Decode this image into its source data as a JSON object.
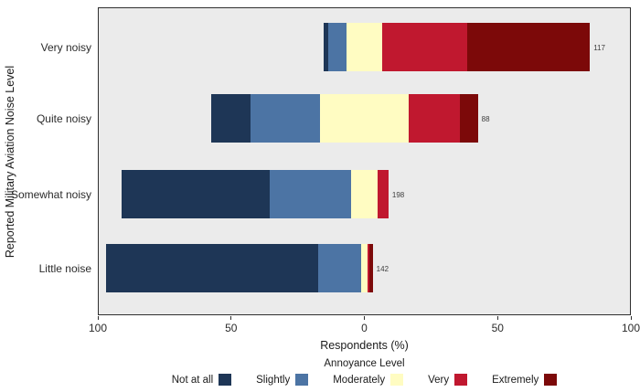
{
  "chart_data": {
    "type": "bar",
    "subtype": "diverging-stacked-bar",
    "title": "",
    "xlabel": "Respondents (%)",
    "ylabel": "Reported Military Aviation Noise Level",
    "legend_title": "Annoyance Level",
    "legend_position": "bottom",
    "xlim": [
      -100,
      100
    ],
    "grid": false,
    "panel_background": "#ebebeb",
    "neutral_centered_level": "Moderately",
    "levels": [
      {
        "name": "Not at all",
        "color": "#1e3656"
      },
      {
        "name": "Slightly",
        "color": "#4c74a4"
      },
      {
        "name": "Moderately",
        "color": "#fffcc2"
      },
      {
        "name": "Very",
        "color": "#c0182f"
      },
      {
        "name": "Extremely",
        "color": "#7c0909"
      }
    ],
    "rows": [
      {
        "category": "Very noisy",
        "count_label": "117",
        "values": [
          1.7,
          6.8,
          13.7,
          31.6,
          46.2
        ]
      },
      {
        "category": "Quite noisy",
        "count_label": "88",
        "values": [
          14.8,
          26.1,
          33.0,
          19.3,
          6.8
        ]
      },
      {
        "category": "Somewhat noisy",
        "count_label": "198",
        "values": [
          55.6,
          30.3,
          10.1,
          4.0,
          0.0
        ]
      },
      {
        "category": "Little noise",
        "count_label": "142",
        "values": [
          79.6,
          16.2,
          2.1,
          0.7,
          1.4
        ]
      }
    ],
    "x_ticks": [
      {
        "value": -100,
        "label": "100"
      },
      {
        "value": -50,
        "label": "50"
      },
      {
        "value": 0,
        "label": "0"
      },
      {
        "value": 50,
        "label": "50"
      },
      {
        "value": 100,
        "label": "100"
      }
    ]
  }
}
